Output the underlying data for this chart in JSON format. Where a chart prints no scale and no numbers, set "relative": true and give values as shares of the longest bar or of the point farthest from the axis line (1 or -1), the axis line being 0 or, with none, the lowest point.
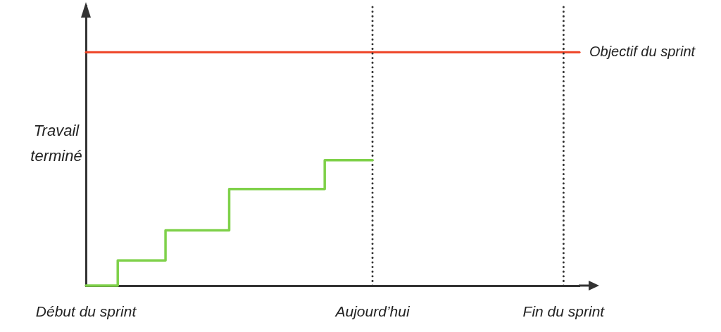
{
  "chart_data": {
    "type": "step",
    "ylabel": "Travail terminé",
    "relative": true,
    "categories": [
      "Début du sprint",
      null,
      null,
      null,
      null,
      null,
      null,
      null,
      null,
      null,
      null,
      null,
      null,
      null,
      null,
      null,
      null,
      null,
      "Aujourd’hui",
      null,
      null,
      null,
      null,
      null,
      null,
      null,
      null,
      null,
      null,
      null,
      "Fin du sprint",
      null
    ],
    "values": [
      0,
      0,
      0.2,
      0.2,
      0.2,
      0.44,
      0.44,
      0.44,
      0.44,
      0.77,
      0.77,
      0.77,
      0.77,
      0.77,
      0.77,
      1,
      1,
      1,
      1,
      null,
      null,
      null,
      null,
      null,
      null,
      null,
      null,
      null,
      null,
      null,
      null,
      null
    ],
    "color": "#7fd14a",
    "ref_lines": [
      {
        "axis": "y",
        "value": 1.86,
        "label": "Objectif du sprint",
        "color": "#ee4123"
      },
      {
        "axis": "x",
        "value": "Aujourd’hui",
        "color": "#333333",
        "line_style": "dotted"
      },
      {
        "axis": "x",
        "value": "Fin du sprint",
        "color": "#333333",
        "line_style": "dotted"
      }
    ]
  }
}
